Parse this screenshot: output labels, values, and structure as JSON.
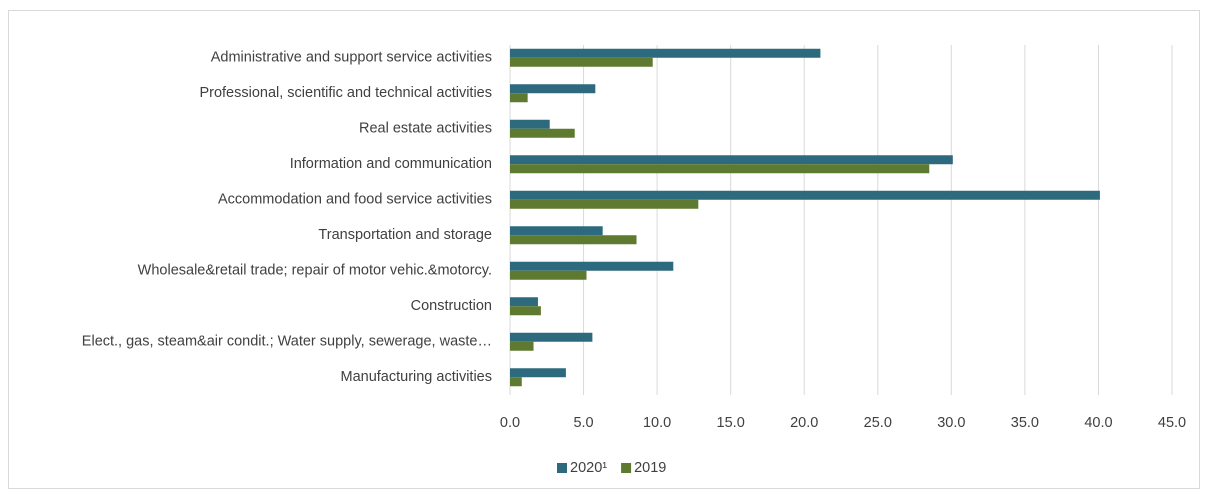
{
  "chart_data": {
    "type": "hbar",
    "categories": [
      "Administrative and support service activities",
      "Professional, scientific and technical activities",
      "Real estate activities",
      "Information and communication",
      "Accommodation and food service activities",
      "Transportation and storage",
      "Wholesale&retail trade; repair of motor vehic.&motorcy.",
      "Construction",
      "Elect., gas, steam&air condit.; Water supply, sewerage, waste…",
      "Manufacturing activities"
    ],
    "series": [
      {
        "name": "2020¹",
        "color": "#2e6a7d",
        "values": [
          21.1,
          5.8,
          2.7,
          30.1,
          40.1,
          6.3,
          11.1,
          1.9,
          5.6,
          3.8
        ]
      },
      {
        "name": "2019",
        "color": "#5e7a30",
        "values": [
          9.7,
          1.2,
          4.4,
          28.5,
          12.8,
          8.6,
          5.2,
          2.1,
          1.6,
          0.8
        ]
      }
    ],
    "xlim": [
      0,
      45
    ],
    "xticks": [
      {
        "value": 0,
        "label": "0.0"
      },
      {
        "value": 5,
        "label": "5.0"
      },
      {
        "value": 10,
        "label": "10.0"
      },
      {
        "value": 15,
        "label": "15.0"
      },
      {
        "value": 20,
        "label": "20.0"
      },
      {
        "value": 25,
        "label": "25.0"
      },
      {
        "value": 30,
        "label": "30.0"
      },
      {
        "value": 35,
        "label": "35.0"
      },
      {
        "value": 40,
        "label": "40.0"
      },
      {
        "value": 45,
        "label": "45.0"
      }
    ],
    "grid": true,
    "legend": "bottom"
  }
}
